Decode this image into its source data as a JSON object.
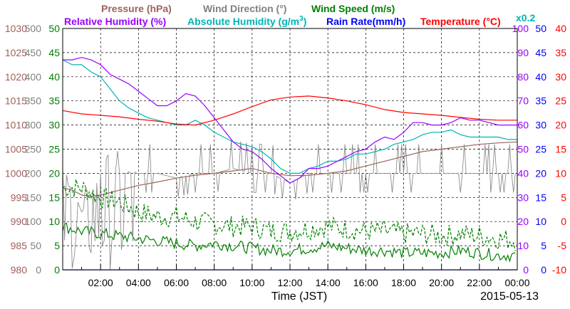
{
  "chart_data": {
    "type": "line",
    "legend": {
      "pressure": "Pressure (hPa)",
      "wind_direction": "Wind Direction (°)",
      "wind_speed": "Wind Speed (m/s)",
      "relative_humidity": "Relative Humidity (%)",
      "absolute_humidity_prefix": "Absolute Humidity (g/m",
      "absolute_humidity_exp": "3",
      "absolute_humidity_suffix": ")",
      "rain_rate": "Rain Rate(mm/h)",
      "temperature": "Temperature (°C)",
      "abs_hum_scale": "x0.2"
    },
    "xlabel": "Time (JST)",
    "date": "2015-05-13",
    "x_ticks": [
      "02:00",
      "04:00",
      "06:00",
      "08:00",
      "10:00",
      "12:00",
      "14:00",
      "16:00",
      "18:00",
      "20:00",
      "22:00",
      "00:00"
    ],
    "x_range_hours": [
      0,
      24
    ],
    "grid": true,
    "axes": {
      "pressure": {
        "ticks": [
          "980",
          "985",
          "990",
          "995",
          "1000",
          "1005",
          "1010",
          "1015",
          "1020",
          "1025",
          "1030"
        ],
        "range": [
          980,
          1030
        ],
        "color": "#a0605a"
      },
      "wind_direction": {
        "ticks": [
          "0",
          "50",
          "100",
          "150",
          "200",
          "250",
          "300",
          "350",
          "400",
          "450",
          "500"
        ],
        "range": [
          0,
          500
        ],
        "color": "#808080"
      },
      "wind_speed": {
        "ticks": [
          "0",
          "5",
          "10",
          "15",
          "20",
          "25",
          "30",
          "35",
          "40",
          "45",
          "50"
        ],
        "range": [
          0,
          50
        ],
        "color": "#008000"
      },
      "relative_humidity": {
        "ticks": [
          "0",
          "10",
          "20",
          "30",
          "40",
          "50",
          "60",
          "70",
          "80",
          "90",
          "100"
        ],
        "range": [
          0,
          100
        ],
        "color": "#9900ff"
      },
      "rain_rate": {
        "ticks": [
          "0",
          "5",
          "10",
          "15",
          "20",
          "25",
          "30",
          "35",
          "40",
          "45",
          "50"
        ],
        "range": [
          0,
          50
        ],
        "color": "#0000ff"
      },
      "temperature": {
        "ticks": [
          "-10",
          "-5",
          "0",
          "5",
          "10",
          "15",
          "20",
          "25",
          "30",
          "35",
          "40"
        ],
        "range": [
          -10,
          40
        ],
        "color": "#ff0000"
      }
    },
    "series": [
      {
        "name": "Pressure (hPa)",
        "color": "#a0605a",
        "axis": "pressure",
        "x": [
          0,
          0.5,
          1,
          1.5,
          2,
          3,
          4,
          5,
          6,
          7,
          8,
          9,
          10,
          11,
          12,
          13,
          14,
          15,
          16,
          17,
          18,
          19,
          20,
          21,
          22,
          23,
          24
        ],
        "y": [
          997,
          996.5,
          995.5,
          995.2,
          995.5,
          996.5,
          997.5,
          998.2,
          999,
          999.6,
          1000,
          1000.5,
          1001,
          1000,
          999.5,
          999.6,
          1000,
          1000.5,
          1001.5,
          1002.5,
          1003.5,
          1004.5,
          1005,
          1005.5,
          1006,
          1006.3,
          1006.5
        ]
      },
      {
        "name": "Wind Direction (°)",
        "color": "#808080",
        "axis": "wind_direction",
        "style": "noisy",
        "x": [
          0,
          0.5,
          1,
          1.5,
          2,
          3,
          4,
          5,
          6,
          7,
          8,
          9,
          10,
          11,
          12,
          13,
          14,
          15,
          16,
          17,
          18,
          19,
          20,
          21,
          22,
          23,
          24
        ],
        "y": [
          180,
          170,
          120,
          150,
          200,
          200,
          200,
          200,
          190,
          200,
          200,
          210,
          200,
          200,
          180,
          200,
          200,
          200,
          200,
          200,
          200,
          200,
          200,
          200,
          200,
          200,
          200
        ]
      },
      {
        "name": "Wind Speed (m/s)",
        "color": "#008000",
        "axis": "wind_speed",
        "x": [
          0,
          1,
          2,
          3,
          4,
          5,
          6,
          7,
          8,
          9,
          10,
          11,
          12,
          13,
          14,
          15,
          16,
          17,
          18,
          19,
          20,
          21,
          22,
          23,
          24
        ],
        "y": [
          9,
          8,
          7.5,
          7,
          6.5,
          6,
          5.5,
          5,
          5.5,
          5,
          4.5,
          4,
          4,
          4.5,
          5,
          4.5,
          4,
          4,
          3.5,
          3.5,
          3.5,
          4,
          3.5,
          3,
          3
        ]
      },
      {
        "name": "Wind Speed gust (m/s)",
        "color": "#008000",
        "axis": "wind_speed",
        "style": "dashed",
        "x": [
          0,
          1,
          2,
          3,
          4,
          5,
          6,
          7,
          8,
          9,
          10,
          11,
          12,
          13,
          14,
          15,
          16,
          17,
          18,
          19,
          20,
          21,
          22,
          23,
          24
        ],
        "y": [
          17,
          17,
          15,
          14,
          12,
          11,
          11,
          10,
          9.5,
          9,
          9,
          8,
          8,
          8.5,
          9,
          8.5,
          8,
          8,
          7.5,
          7.5,
          7,
          7.5,
          7,
          6.5,
          6
        ]
      },
      {
        "name": "Relative Humidity (%)",
        "color": "#9900ff",
        "axis": "relative_humidity",
        "x": [
          0,
          0.5,
          1,
          1.5,
          2,
          2.5,
          3,
          3.5,
          4,
          4.5,
          5,
          5.5,
          6,
          6.5,
          7,
          7.5,
          8,
          8.5,
          9,
          9.5,
          10,
          10.5,
          11,
          11.5,
          12,
          12.5,
          13,
          13.5,
          14,
          14.5,
          15,
          15.5,
          16,
          16.5,
          17,
          17.5,
          18,
          18.5,
          19,
          19.5,
          20,
          20.5,
          21,
          21.5,
          22,
          22.5,
          23,
          23.5,
          24
        ],
        "y": [
          87,
          87,
          88,
          87,
          85,
          81,
          79,
          77,
          74,
          71,
          68,
          68,
          70,
          73,
          72,
          68,
          63,
          58,
          53,
          50,
          49,
          46,
          42,
          39,
          36,
          38,
          42,
          42,
          43,
          45,
          47,
          49,
          50,
          53,
          55,
          54,
          57,
          61,
          61,
          60,
          60,
          61,
          63,
          62,
          62,
          61,
          60,
          60,
          60
        ]
      },
      {
        "name": "Absolute Humidity (g/m3) x0.2",
        "color": "#00b3b3",
        "axis": "relative_humidity",
        "x": [
          0,
          0.5,
          1,
          1.5,
          2,
          2.5,
          3,
          3.5,
          4,
          4.5,
          5,
          5.5,
          6,
          6.5,
          7,
          7.5,
          8,
          8.5,
          9,
          9.5,
          10,
          10.5,
          11,
          11.5,
          12,
          12.5,
          13,
          13.5,
          14,
          14.5,
          15,
          15.5,
          16,
          16.5,
          17,
          17.5,
          18,
          18.5,
          19,
          19.5,
          20,
          20.5,
          21,
          21.5,
          22,
          22.5,
          23,
          23.5,
          24
        ],
        "y": [
          87,
          85,
          85,
          82,
          80,
          75,
          70,
          67,
          65,
          63,
          62,
          61,
          60,
          60,
          62,
          60,
          57,
          55,
          53,
          52,
          51,
          49,
          46,
          42,
          40,
          40,
          42,
          43,
          45,
          45,
          46,
          48,
          48,
          49,
          50,
          52,
          53,
          54,
          56,
          57,
          57,
          58,
          56,
          55,
          55,
          55,
          55,
          54,
          54
        ]
      },
      {
        "name": "Temperature (°C)",
        "color": "#ff0000",
        "axis": "temperature",
        "x": [
          0,
          1,
          2,
          3,
          4,
          5,
          6,
          7,
          8,
          9,
          10,
          11,
          12,
          13,
          14,
          15,
          16,
          17,
          18,
          19,
          20,
          21,
          22,
          23,
          24
        ],
        "y": [
          23,
          22.3,
          22,
          21.7,
          21.2,
          20.8,
          20.2,
          20,
          21,
          22.3,
          23.8,
          25.2,
          25.8,
          26,
          25.6,
          25,
          24.2,
          23.2,
          22.6,
          22.3,
          22,
          21.6,
          21.2,
          21,
          21
        ]
      },
      {
        "name": "Rain Rate(mm/h)",
        "color": "#0000ff",
        "axis": "rain_rate",
        "x": [
          0,
          24
        ],
        "y": [
          0,
          0
        ]
      }
    ]
  }
}
